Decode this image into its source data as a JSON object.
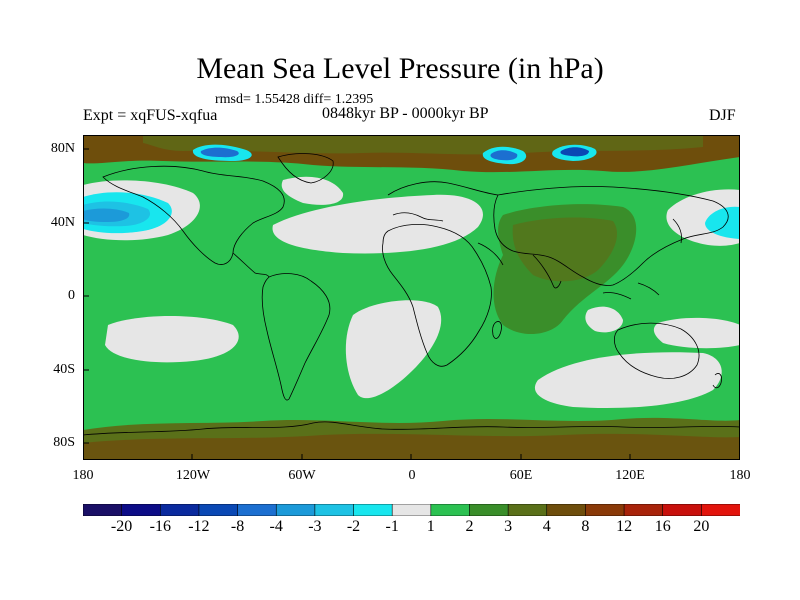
{
  "title": "Mean Sea Level Pressure (in hPa)",
  "stats": "rmsd= 1.55428 diff= 1.2395",
  "experiment": "Expt = xqFUS-xqfua",
  "period": "0848kyr BP - 0000kyr BP",
  "season": "DJF",
  "y_axis_labels": [
    "80N",
    "40N",
    "0",
    "40S",
    "80S"
  ],
  "x_axis_labels": [
    "180",
    "120W",
    "60W",
    "0",
    "60E",
    "120E",
    "180"
  ],
  "colorbar": {
    "labels": [
      "-20",
      "-16",
      "-12",
      "-8",
      "-4",
      "-3",
      "-2",
      "-1",
      "1",
      "2",
      "3",
      "4",
      "8",
      "12",
      "16",
      "20"
    ],
    "colors": [
      "#1a0f66",
      "#0c0c87",
      "#0a2a9e",
      "#0a48b4",
      "#1c6fd0",
      "#1c9ad9",
      "#1ec2e4",
      "#18e6ee",
      "#e6e6e6",
      "#2cc152",
      "#3a8e2a",
      "#5a7019",
      "#6e4e0c",
      "#8a3a08",
      "#a8230a",
      "#c8100c",
      "#e2140c"
    ]
  },
  "colors": {
    "land_outline": "#000000",
    "background_field": "#2cc152"
  }
}
